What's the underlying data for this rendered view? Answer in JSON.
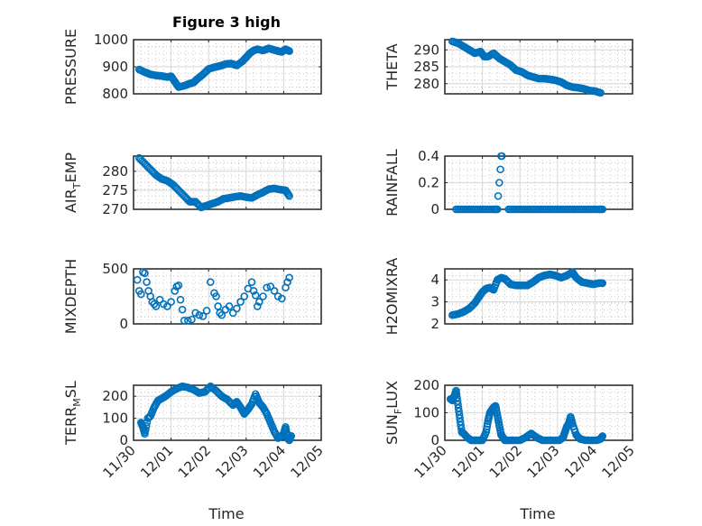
{
  "figure": {
    "title": "Figure 3 high",
    "xlabel": "Time",
    "marker_color": "#0072BD"
  },
  "chart_data": [
    {
      "type": "scatter",
      "id": "pressure",
      "ylabel": "PRESSURE",
      "ylabel_sub": null,
      "xlim": [
        0,
        5
      ],
      "ylim": [
        800,
        1000
      ],
      "yticks": [
        800,
        900,
        1000
      ],
      "xticks": [
        "11/30",
        "12/01",
        "12/02",
        "12/03",
        "12/04",
        "12/05"
      ],
      "x": [
        0.15,
        0.3,
        0.45,
        0.6,
        0.75,
        0.9,
        1.0,
        1.1,
        1.2,
        1.35,
        1.5,
        1.6,
        1.7,
        1.85,
        2.0,
        2.15,
        2.3,
        2.45,
        2.6,
        2.75,
        2.9,
        3.0,
        3.1,
        3.2,
        3.3,
        3.45,
        3.6,
        3.75,
        3.85,
        3.95,
        4.05,
        4.15
      ],
      "y": [
        890,
        880,
        872,
        868,
        866,
        862,
        865,
        845,
        825,
        830,
        838,
        842,
        855,
        872,
        892,
        898,
        903,
        910,
        912,
        905,
        920,
        935,
        950,
        960,
        965,
        960,
        968,
        962,
        958,
        955,
        965,
        958
      ]
    },
    {
      "type": "scatter",
      "id": "theta",
      "ylabel": "THETA",
      "xlim": [
        0,
        5
      ],
      "ylim": [
        277,
        293
      ],
      "yticks": [
        280,
        285,
        290
      ],
      "xticks": [
        "11/30",
        "12/01",
        "12/02",
        "12/03",
        "12/04",
        "12/05"
      ],
      "x": [
        0.2,
        0.35,
        0.5,
        0.65,
        0.8,
        0.95,
        1.05,
        1.15,
        1.3,
        1.45,
        1.6,
        1.75,
        1.9,
        2.05,
        2.2,
        2.35,
        2.5,
        2.65,
        2.8,
        2.95,
        3.1,
        3.25,
        3.4,
        3.55,
        3.7,
        3.85,
        4.0,
        4.15
      ],
      "y": [
        292.5,
        292,
        291,
        290,
        289,
        289.5,
        288,
        288,
        289,
        287.5,
        286.5,
        285.5,
        284,
        283.5,
        282.5,
        282,
        281.5,
        281.5,
        281.3,
        281,
        280.5,
        279.5,
        279,
        278.8,
        278.5,
        278,
        277.8,
        277.3
      ]
    },
    {
      "type": "scatter",
      "id": "air_temp",
      "ylabel": "AIR",
      "ylabel_sub": "T",
      "ylabel_rest": "EMP",
      "xlim": [
        0,
        5
      ],
      "ylim": [
        270,
        284
      ],
      "yticks": [
        270,
        275,
        280
      ],
      "xticks": [
        "11/30",
        "12/01",
        "12/02",
        "12/03",
        "12/04",
        "12/05"
      ],
      "x": [
        0.15,
        0.3,
        0.45,
        0.6,
        0.75,
        0.9,
        1.05,
        1.2,
        1.35,
        1.5,
        1.65,
        1.8,
        1.95,
        2.1,
        2.25,
        2.4,
        2.55,
        2.7,
        2.85,
        3.0,
        3.15,
        3.3,
        3.45,
        3.6,
        3.75,
        3.9,
        4.05,
        4.15
      ],
      "y": [
        283.5,
        282,
        280.5,
        279,
        278,
        277.5,
        276.5,
        275,
        273.5,
        272,
        272,
        270.5,
        271,
        271.5,
        272,
        272.8,
        273,
        273.3,
        273.5,
        273.2,
        273,
        273.8,
        274.5,
        275.3,
        275.5,
        275.2,
        275,
        273.5
      ]
    },
    {
      "type": "scatter",
      "id": "rainfall",
      "ylabel": "RAINFALL",
      "xlim": [
        0,
        5
      ],
      "ylim": [
        0,
        0.4
      ],
      "yticks": [
        0,
        0.2,
        0.4
      ],
      "xticks": [
        "11/30",
        "12/01",
        "12/02",
        "12/03",
        "12/04",
        "12/05"
      ],
      "x": [
        0.3,
        0.5,
        0.7,
        0.9,
        1.1,
        1.3,
        1.4,
        1.42,
        1.45,
        1.48,
        1.5,
        1.52,
        1.7,
        1.9,
        2.1,
        2.3,
        2.5,
        2.7,
        2.9,
        3.1,
        3.3,
        3.5,
        3.7,
        3.9,
        4.1,
        4.2
      ],
      "y": [
        0,
        0,
        0,
        0,
        0,
        0,
        0,
        0.1,
        0.2,
        0.3,
        0.4,
        0.4,
        0,
        0,
        0,
        0,
        0,
        0,
        0,
        0,
        0,
        0,
        0,
        0,
        0,
        0
      ]
    },
    {
      "type": "scatter",
      "id": "mixdepth",
      "ylabel": "MIXDEPTH",
      "xlim": [
        0,
        5
      ],
      "ylim": [
        0,
        500
      ],
      "yticks": [
        0,
        500
      ],
      "xticks": [
        "11/30",
        "12/01",
        "12/02",
        "12/03",
        "12/04",
        "12/05"
      ],
      "x": [
        0.1,
        0.15,
        0.2,
        0.25,
        0.3,
        0.35,
        0.4,
        0.45,
        0.5,
        0.55,
        0.6,
        0.7,
        0.8,
        0.9,
        1.0,
        1.1,
        1.15,
        1.2,
        1.25,
        1.3,
        1.35,
        1.45,
        1.55,
        1.65,
        1.75,
        1.85,
        1.95,
        2.05,
        2.15,
        2.2,
        2.25,
        2.3,
        2.35,
        2.45,
        2.55,
        2.65,
        2.75,
        2.85,
        2.95,
        3.05,
        3.15,
        3.2,
        3.25,
        3.3,
        3.35,
        3.45,
        3.55,
        3.65,
        3.75,
        3.85,
        3.95,
        4.05,
        4.1,
        4.15
      ],
      "y": [
        400,
        300,
        270,
        470,
        460,
        380,
        300,
        250,
        200,
        180,
        160,
        220,
        180,
        160,
        200,
        300,
        340,
        350,
        220,
        130,
        30,
        30,
        40,
        100,
        80,
        70,
        120,
        380,
        280,
        250,
        160,
        100,
        80,
        130,
        160,
        100,
        140,
        200,
        250,
        320,
        380,
        300,
        260,
        160,
        200,
        250,
        330,
        340,
        300,
        250,
        230,
        330,
        380,
        420
      ]
    },
    {
      "type": "scatter",
      "id": "h2omixra",
      "ylabel": "H2OMIXRA",
      "xlim": [
        0,
        5
      ],
      "ylim": [
        2,
        4.5
      ],
      "yticks": [
        2,
        3,
        4
      ],
      "xticks": [
        "11/30",
        "12/01",
        "12/02",
        "12/03",
        "12/04",
        "12/05"
      ],
      "x": [
        0.2,
        0.35,
        0.5,
        0.65,
        0.8,
        0.9,
        1.0,
        1.1,
        1.2,
        1.3,
        1.4,
        1.5,
        1.6,
        1.75,
        1.9,
        2.05,
        2.2,
        2.35,
        2.5,
        2.65,
        2.8,
        2.95,
        3.1,
        3.25,
        3.4,
        3.5,
        3.65,
        3.8,
        3.95,
        4.1,
        4.2
      ],
      "y": [
        2.4,
        2.45,
        2.55,
        2.7,
        2.95,
        3.2,
        3.45,
        3.6,
        3.65,
        3.55,
        4.0,
        4.1,
        4.05,
        3.8,
        3.75,
        3.75,
        3.75,
        3.9,
        4.1,
        4.2,
        4.25,
        4.2,
        4.1,
        4.2,
        4.35,
        4.1,
        3.9,
        3.85,
        3.8,
        3.85,
        3.85
      ]
    },
    {
      "type": "scatter",
      "id": "terr_msl",
      "ylabel": "TERR",
      "ylabel_sub": "M",
      "ylabel_rest": "SL",
      "xlim": [
        0,
        5
      ],
      "ylim": [
        0,
        250
      ],
      "yticks": [
        0,
        100,
        200
      ],
      "xticks": [
        "11/30",
        "12/01",
        "12/02",
        "12/03",
        "12/04",
        "12/05"
      ],
      "x": [
        0.2,
        0.25,
        0.3,
        0.38,
        0.45,
        0.55,
        0.65,
        0.75,
        0.85,
        1.0,
        1.15,
        1.3,
        1.45,
        1.6,
        1.75,
        1.9,
        2.05,
        2.2,
        2.35,
        2.5,
        2.65,
        2.75,
        2.85,
        2.95,
        3.05,
        3.15,
        3.25,
        3.35,
        3.45,
        3.55,
        3.65,
        3.75,
        3.85,
        3.95,
        4.0,
        4.05,
        4.1,
        4.15,
        4.2
      ],
      "y": [
        80,
        60,
        30,
        100,
        110,
        150,
        180,
        190,
        200,
        220,
        235,
        245,
        240,
        230,
        215,
        220,
        245,
        225,
        200,
        185,
        160,
        175,
        150,
        120,
        140,
        165,
        210,
        170,
        150,
        120,
        80,
        40,
        10,
        20,
        30,
        60,
        10,
        0,
        20
      ]
    },
    {
      "type": "scatter",
      "id": "sun_flux",
      "ylabel": "SUN",
      "ylabel_sub": "F",
      "ylabel_rest": "LUX",
      "xlim": [
        0,
        5
      ],
      "ylim": [
        0,
        200
      ],
      "yticks": [
        0,
        100,
        200
      ],
      "xticks": [
        "11/30",
        "12/01",
        "12/02",
        "12/03",
        "12/04",
        "12/05"
      ],
      "x": [
        0.15,
        0.2,
        0.25,
        0.3,
        0.35,
        0.4,
        0.45,
        0.5,
        0.6,
        0.7,
        0.8,
        0.9,
        1.0,
        1.1,
        1.15,
        1.2,
        1.25,
        1.3,
        1.35,
        1.4,
        1.45,
        1.5,
        1.55,
        1.6,
        1.7,
        1.85,
        2.0,
        2.15,
        2.3,
        2.45,
        2.6,
        2.75,
        2.9,
        3.05,
        3.15,
        3.2,
        3.25,
        3.3,
        3.35,
        3.4,
        3.5,
        3.6,
        3.75,
        3.9,
        4.05,
        4.15,
        4.2
      ],
      "y": [
        150,
        145,
        160,
        180,
        130,
        80,
        30,
        25,
        10,
        0,
        0,
        0,
        0,
        30,
        70,
        100,
        110,
        120,
        125,
        90,
        55,
        20,
        10,
        0,
        0,
        0,
        0,
        10,
        25,
        10,
        0,
        0,
        0,
        0,
        10,
        30,
        50,
        60,
        85,
        60,
        20,
        5,
        0,
        0,
        0,
        5,
        15
      ]
    }
  ]
}
